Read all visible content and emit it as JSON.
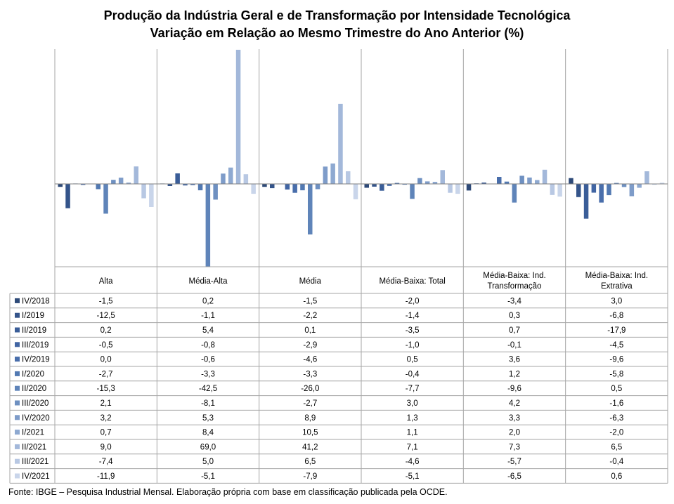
{
  "title_line1": "Produção da Indústria Geral e de Transformação  por Intensidade Tecnológica",
  "title_line2": "Variação  em Relação ao Mesmo Trimestre do Ano Anterior (%)",
  "footer": "Fonte: IBGE – Pesquisa Industrial Mensal. Elaboração própria com base em classificação publicada pela OCDE.",
  "chart_data": {
    "type": "bar",
    "categories": [
      "Alta",
      "Média-Alta",
      "Média",
      "Média-Baixa: Total",
      "Média-Baixa: Ind.\nTransformação",
      "Média-Baixa: Ind.\nExtrativa"
    ],
    "series": [
      {
        "name": "IV/2018",
        "color": "#2e4a78",
        "values": [
          -1.5,
          0.2,
          -1.5,
          -2.0,
          -3.4,
          3.0
        ]
      },
      {
        "name": "I/2019",
        "color": "#34548a",
        "values": [
          -12.5,
          -1.1,
          -2.2,
          -1.4,
          0.3,
          -6.8
        ]
      },
      {
        "name": "II/2019",
        "color": "#3a5d98",
        "values": [
          0.2,
          5.4,
          0.1,
          -3.5,
          0.7,
          -17.9
        ]
      },
      {
        "name": "III/2019",
        "color": "#4165a3",
        "values": [
          -0.5,
          -0.8,
          -2.9,
          -1.0,
          -0.1,
          -4.5
        ]
      },
      {
        "name": "IV/2019",
        "color": "#496eab",
        "values": [
          0.0,
          -0.6,
          -4.6,
          0.5,
          3.6,
          -9.6
        ]
      },
      {
        "name": "I/2020",
        "color": "#5279b2",
        "values": [
          -2.7,
          -3.3,
          -3.3,
          -0.4,
          1.2,
          -5.8
        ]
      },
      {
        "name": "II/2020",
        "color": "#5f84b9",
        "values": [
          -15.3,
          -42.5,
          -26.0,
          -7.7,
          -9.6,
          0.5
        ]
      },
      {
        "name": "III/2020",
        "color": "#6e90c1",
        "values": [
          2.1,
          -8.1,
          -2.7,
          3.0,
          4.2,
          -1.6
        ]
      },
      {
        "name": "IV/2020",
        "color": "#7e9cc9",
        "values": [
          3.2,
          5.3,
          8.9,
          1.3,
          3.3,
          -6.3
        ]
      },
      {
        "name": "I/2021",
        "color": "#8ea9d1",
        "values": [
          0.7,
          8.4,
          10.5,
          1.1,
          2.0,
          -2.0
        ]
      },
      {
        "name": "II/2021",
        "color": "#a3b8da",
        "values": [
          9.0,
          69.0,
          41.2,
          7.1,
          7.3,
          6.5
        ]
      },
      {
        "name": "III/2021",
        "color": "#b8c8e3",
        "values": [
          -7.4,
          5.0,
          6.5,
          -4.6,
          -5.7,
          -0.4
        ]
      },
      {
        "name": "IV/2021",
        "color": "#c9d5ea",
        "values": [
          -11.9,
          -5.1,
          -7.9,
          -5.1,
          -6.5,
          0.6
        ]
      }
    ],
    "ylim": [
      -44,
      70
    ],
    "grid": false,
    "legend": "data-table"
  }
}
